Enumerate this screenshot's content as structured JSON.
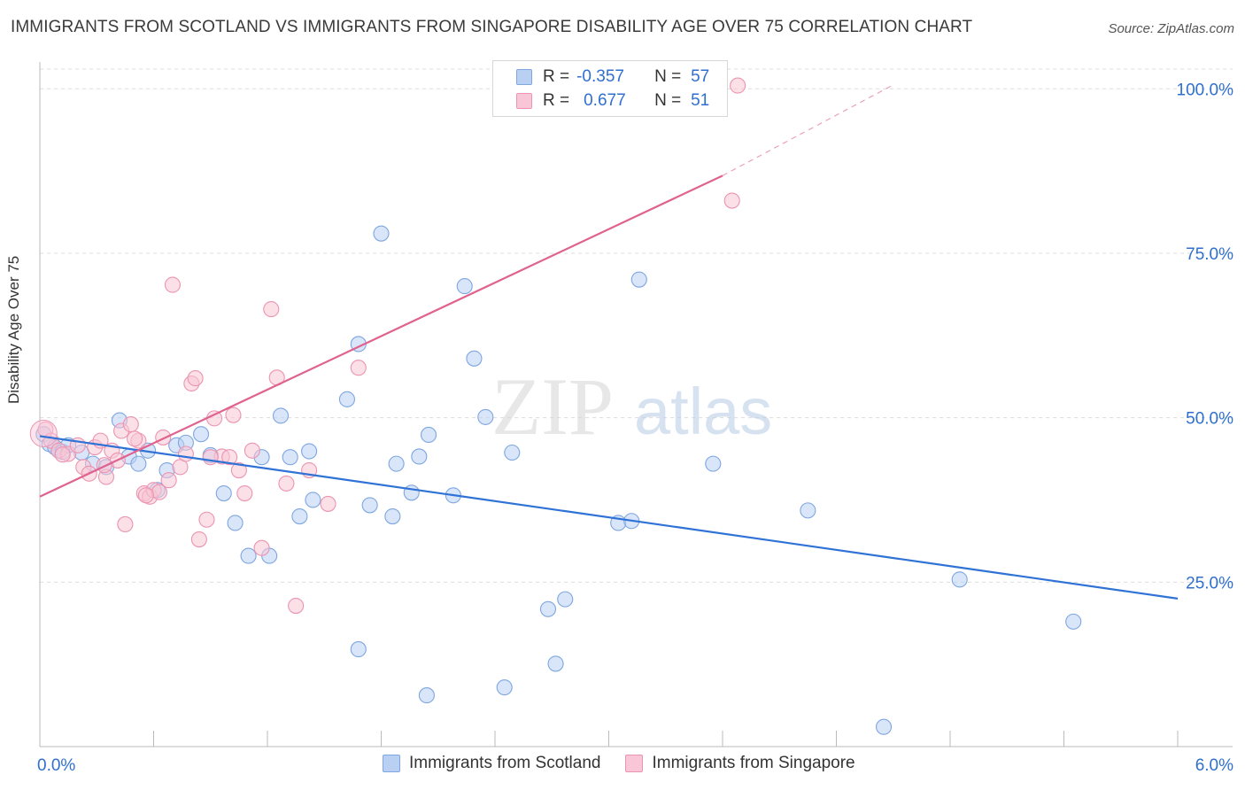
{
  "title": "IMMIGRANTS FROM SCOTLAND VS IMMIGRANTS FROM SINGAPORE DISABILITY AGE OVER 75 CORRELATION CHART",
  "source_label": "Source: ZipAtlas.com",
  "watermark": "ZIPatlas",
  "colors": {
    "blue_fill": "#b9d0f2",
    "blue_stroke": "#7ea6e0",
    "blue_line": "#2f72d6",
    "pink_fill": "#f8c6d6",
    "pink_stroke": "#ec94b0",
    "pink_line": "#e0628f",
    "value_text": "#2f6fd0"
  },
  "legend": {
    "rows": [
      {
        "r_label": "R =",
        "r_value": "-0.357",
        "n_label": "N =",
        "n_value": "57"
      },
      {
        "r_label": "R =",
        "r_value": "0.677",
        "n_label": "N =",
        "n_value": "51"
      }
    ]
  },
  "bottom_legend": [
    "Immigrants from Scotland",
    "Immigrants from Singapore"
  ],
  "chart_data": {
    "type": "scatter",
    "title": "IMMIGRANTS FROM SCOTLAND VS IMMIGRANTS FROM SINGAPORE DISABILITY AGE OVER 75 CORRELATION CHART",
    "xlabel": "",
    "ylabel": "Disability Age Over 75",
    "xlim": [
      0,
      6
    ],
    "ylim": [
      0,
      103
    ],
    "x_tick_labels": [
      "0.0%",
      "6.0%"
    ],
    "y_ticks": [
      25,
      50,
      75,
      100
    ],
    "y_tick_labels": [
      "25.0%",
      "50.0%",
      "75.0%",
      "100.0%"
    ],
    "grid": true,
    "series": [
      {
        "name": "Immigrants from Scotland",
        "color": "blue",
        "trend": {
          "x0": 0,
          "y0": 47.2,
          "x1": 6,
          "y1": 22.5
        },
        "points": [
          [
            0.02,
            47.5
          ],
          [
            0.05,
            46.0
          ],
          [
            0.08,
            45.5
          ],
          [
            0.1,
            45.0
          ],
          [
            0.12,
            44.8
          ],
          [
            0.15,
            45.8
          ],
          [
            0.22,
            44.7
          ],
          [
            0.28,
            43.0
          ],
          [
            0.35,
            42.5
          ],
          [
            0.42,
            49.6
          ],
          [
            0.47,
            44.1
          ],
          [
            0.52,
            43.0
          ],
          [
            0.57,
            45.0
          ],
          [
            0.62,
            39.0
          ],
          [
            0.67,
            42.0
          ],
          [
            0.72,
            45.8
          ],
          [
            0.77,
            46.2
          ],
          [
            0.85,
            47.5
          ],
          [
            0.9,
            44.3
          ],
          [
            0.97,
            38.5
          ],
          [
            1.03,
            34.0
          ],
          [
            1.1,
            29.0
          ],
          [
            1.17,
            44.0
          ],
          [
            1.21,
            29.0
          ],
          [
            1.27,
            50.3
          ],
          [
            1.32,
            44.0
          ],
          [
            1.37,
            35.0
          ],
          [
            1.42,
            44.9
          ],
          [
            1.44,
            37.5
          ],
          [
            1.62,
            52.8
          ],
          [
            1.68,
            61.2
          ],
          [
            1.68,
            14.8
          ],
          [
            1.74,
            36.7
          ],
          [
            1.8,
            78.0
          ],
          [
            1.86,
            35.0
          ],
          [
            1.88,
            43.0
          ],
          [
            1.96,
            38.6
          ],
          [
            2.0,
            44.1
          ],
          [
            2.05,
            47.4
          ],
          [
            2.04,
            7.8
          ],
          [
            2.18,
            38.2
          ],
          [
            2.24,
            70.0
          ],
          [
            2.29,
            59.0
          ],
          [
            2.35,
            50.1
          ],
          [
            2.45,
            9.0
          ],
          [
            2.49,
            44.7
          ],
          [
            2.68,
            20.9
          ],
          [
            2.72,
            12.6
          ],
          [
            2.77,
            22.4
          ],
          [
            3.05,
            34.0
          ],
          [
            3.12,
            34.3
          ],
          [
            3.16,
            71.0
          ],
          [
            3.55,
            43.0
          ],
          [
            4.05,
            35.9
          ],
          [
            4.45,
            3.0
          ],
          [
            4.85,
            25.4
          ],
          [
            5.45,
            19.0
          ]
        ]
      },
      {
        "name": "Immigrants from Singapore",
        "color": "pink",
        "trend": {
          "x0": 0,
          "y0": 38.0,
          "x1": 3.6,
          "y1": 86.8,
          "dash_to_x": 4.5,
          "dash_to_y": 100.6
        },
        "points": [
          [
            0.03,
            48.2
          ],
          [
            0.06,
            46.5
          ],
          [
            0.1,
            45.0
          ],
          [
            0.15,
            44.5
          ],
          [
            0.2,
            45.8
          ],
          [
            0.23,
            42.5
          ],
          [
            0.26,
            41.5
          ],
          [
            0.29,
            45.5
          ],
          [
            0.32,
            46.5
          ],
          [
            0.35,
            41.0
          ],
          [
            0.38,
            45.0
          ],
          [
            0.41,
            43.5
          ],
          [
            0.43,
            48.0
          ],
          [
            0.45,
            33.8
          ],
          [
            0.48,
            49.0
          ],
          [
            0.52,
            46.5
          ],
          [
            0.55,
            38.5
          ],
          [
            0.58,
            38.0
          ],
          [
            0.6,
            39.0
          ],
          [
            0.63,
            38.7
          ],
          [
            0.65,
            47.0
          ],
          [
            0.68,
            40.5
          ],
          [
            0.7,
            70.2
          ],
          [
            0.74,
            42.5
          ],
          [
            0.77,
            44.5
          ],
          [
            0.8,
            55.2
          ],
          [
            0.82,
            56.0
          ],
          [
            0.84,
            31.5
          ],
          [
            0.88,
            34.5
          ],
          [
            0.92,
            49.9
          ],
          [
            0.96,
            44.1
          ],
          [
            1.0,
            44.0
          ],
          [
            1.02,
            50.4
          ],
          [
            1.05,
            42.0
          ],
          [
            1.08,
            38.5
          ],
          [
            1.12,
            45.0
          ],
          [
            1.17,
            30.2
          ],
          [
            1.22,
            66.5
          ],
          [
            1.25,
            56.1
          ],
          [
            1.3,
            40.0
          ],
          [
            1.35,
            21.4
          ],
          [
            1.42,
            42.0
          ],
          [
            1.52,
            36.9
          ],
          [
            1.68,
            57.6
          ],
          [
            3.65,
            83.0
          ],
          [
            3.68,
            100.5
          ],
          [
            0.12,
            44.4
          ],
          [
            0.34,
            42.8
          ],
          [
            0.5,
            46.8
          ],
          [
            0.56,
            38.2
          ],
          [
            0.9,
            44.0
          ]
        ]
      }
    ]
  }
}
